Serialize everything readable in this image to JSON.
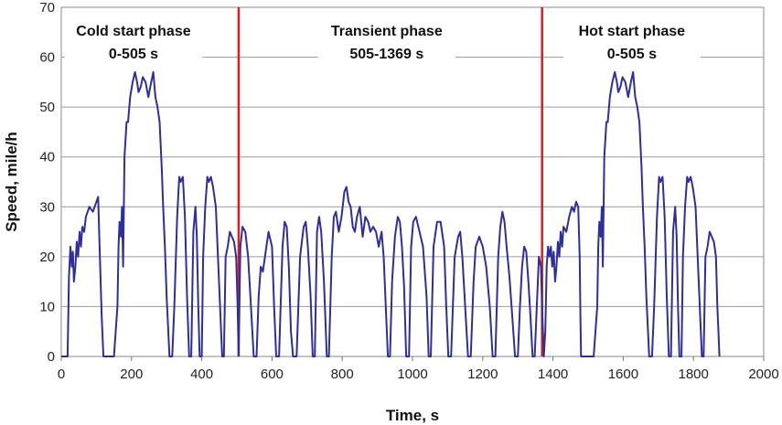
{
  "chart_data": {
    "type": "line",
    "xlabel": "Time, s",
    "ylabel": "Speed, mile/h",
    "xlim": [
      0,
      2000
    ],
    "ylim": [
      0,
      70
    ],
    "x_ticks": [
      0,
      200,
      400,
      600,
      800,
      1000,
      1200,
      1400,
      1600,
      1800,
      2000
    ],
    "y_ticks": [
      0,
      10,
      20,
      30,
      40,
      50,
      60,
      70
    ],
    "grid": "horizontal",
    "series_color": "#2e2e9e",
    "divider_color": "#e31b1b",
    "phase_dividers": [
      505,
      1369
    ],
    "phases": [
      {
        "name": "Cold start phase",
        "range": "0-505 s"
      },
      {
        "name": "Transient phase",
        "range": "505-1369 s"
      },
      {
        "name": "Hot start phase",
        "range": "0-505 s"
      }
    ],
    "series": [
      {
        "x": [
          0,
          18,
          22,
          26,
          30,
          33,
          36,
          40,
          44,
          48,
          52,
          56,
          60,
          65,
          70,
          80,
          90,
          100,
          105,
          110,
          115,
          120,
          123,
          150,
          160,
          163,
          166,
          170,
          173,
          176,
          180,
          186,
          190,
          196,
          203,
          210,
          216,
          220,
          226,
          232,
          240,
          248,
          256,
          262,
          268,
          274,
          280,
          286,
          290,
          295,
          300,
          308,
          316,
          322,
          330,
          336,
          340,
          346,
          352,
          358,
          364,
          370,
          376,
          382,
          386,
          390,
          394,
          400,
          404,
          410,
          416,
          420,
          426,
          432,
          440,
          446,
          452,
          458,
          463,
          468,
          474,
          480,
          486,
          492,
          498,
          502,
          505
        ],
        "y": [
          0,
          0,
          16,
          22,
          18,
          21,
          15,
          18,
          23,
          20,
          25,
          22,
          26,
          25,
          28,
          30,
          29,
          31,
          32,
          20,
          8,
          0,
          0,
          0,
          10,
          22,
          27,
          24,
          30,
          18,
          40,
          47,
          47,
          52,
          55,
          57,
          55,
          53,
          54,
          56,
          55,
          52,
          55,
          57,
          52,
          50,
          47,
          38,
          30,
          22,
          12,
          0,
          0,
          10,
          28,
          36,
          35,
          36,
          28,
          12,
          0,
          0,
          25,
          30,
          24,
          10,
          0,
          0,
          20,
          30,
          36,
          35,
          36,
          34,
          30,
          20,
          10,
          0,
          0,
          20,
          22,
          25,
          24,
          23,
          20,
          10,
          0
        ]
      },
      {
        "x": [
          505,
          510,
          516,
          524,
          532,
          540,
          548,
          556,
          562,
          568,
          574,
          580,
          590,
          600,
          606,
          612,
          620,
          630,
          636,
          642,
          648,
          654,
          660,
          670,
          680,
          690,
          696,
          702,
          710,
          716,
          722,
          728,
          734,
          740,
          748,
          756,
          762,
          770,
          776,
          782,
          790,
          798,
          806,
          812,
          818,
          824,
          830,
          836,
          842,
          850,
          858,
          866,
          874,
          880,
          888,
          896,
          904,
          912,
          918,
          924,
          930,
          936,
          942,
          950,
          958,
          964,
          970,
          976,
          982,
          990,
          996,
          1002,
          1010,
          1020,
          1030,
          1040,
          1046,
          1052,
          1060,
          1070,
          1080,
          1090,
          1096,
          1102,
          1110,
          1120,
          1130,
          1136,
          1142,
          1150,
          1158,
          1166,
          1174,
          1180,
          1190,
          1200,
          1210,
          1220,
          1228,
          1236,
          1244,
          1250,
          1256,
          1262,
          1268,
          1276,
          1284,
          1292,
          1300,
          1306,
          1312,
          1318,
          1324,
          1330,
          1336,
          1342,
          1348,
          1354,
          1360,
          1366,
          1369
        ],
        "y": [
          0,
          22,
          26,
          25,
          20,
          10,
          0,
          0,
          12,
          18,
          17,
          20,
          25,
          22,
          10,
          0,
          0,
          22,
          27,
          26,
          18,
          5,
          0,
          0,
          20,
          26,
          27,
          22,
          12,
          0,
          0,
          25,
          28,
          25,
          15,
          0,
          0,
          20,
          28,
          29,
          25,
          28,
          33,
          34,
          31,
          30,
          26,
          25,
          28,
          30,
          24,
          28,
          27,
          25,
          26,
          25,
          22,
          25,
          20,
          10,
          0,
          0,
          15,
          24,
          28,
          27,
          22,
          14,
          0,
          0,
          22,
          27,
          28,
          25,
          22,
          12,
          0,
          0,
          22,
          27,
          27,
          22,
          10,
          0,
          0,
          20,
          24,
          25,
          20,
          10,
          0,
          0,
          15,
          22,
          24,
          22,
          18,
          10,
          0,
          0,
          20,
          26,
          29,
          27,
          22,
          16,
          8,
          0,
          0,
          10,
          18,
          22,
          21,
          15,
          8,
          0,
          0,
          10,
          20,
          18,
          10
        ]
      },
      {
        "x": [
          1369,
          1374,
          1378,
          1382,
          1386,
          1390,
          1394,
          1398,
          1402,
          1406,
          1410,
          1414,
          1418,
          1422,
          1426,
          1430,
          1438,
          1446,
          1454,
          1460,
          1466,
          1472,
          1476,
          1478,
          1480,
          1484,
          1488,
          1492,
          1496,
          1516,
          1526,
          1529,
          1532,
          1536,
          1539,
          1542,
          1546,
          1552,
          1556,
          1562,
          1569,
          1576,
          1582,
          1586,
          1592,
          1598,
          1606,
          1614,
          1622,
          1628,
          1634,
          1640,
          1646,
          1652,
          1656,
          1661,
          1666,
          1674,
          1682,
          1688,
          1696,
          1702,
          1706,
          1712,
          1718,
          1724,
          1730,
          1736,
          1742,
          1748,
          1752,
          1756,
          1760,
          1766,
          1770,
          1776,
          1782,
          1786,
          1792,
          1798,
          1806,
          1812,
          1818,
          1824,
          1829,
          1834,
          1840,
          1846,
          1852,
          1858,
          1864,
          1868,
          1871,
          1874
        ],
        "y": [
          10,
          0,
          5,
          18,
          22,
          20,
          22,
          18,
          21,
          15,
          18,
          23,
          20,
          25,
          22,
          26,
          25,
          28,
          30,
          29,
          31,
          30,
          20,
          8,
          0,
          0,
          0,
          0,
          0,
          0,
          10,
          22,
          27,
          24,
          30,
          18,
          40,
          47,
          47,
          52,
          55,
          57,
          55,
          53,
          54,
          56,
          55,
          52,
          55,
          57,
          52,
          50,
          47,
          38,
          30,
          22,
          12,
          0,
          0,
          10,
          28,
          36,
          35,
          36,
          28,
          12,
          0,
          0,
          25,
          30,
          24,
          10,
          0,
          0,
          20,
          30,
          36,
          35,
          36,
          34,
          30,
          20,
          10,
          0,
          0,
          20,
          22,
          25,
          24,
          23,
          20,
          10,
          5,
          0
        ]
      }
    ]
  }
}
